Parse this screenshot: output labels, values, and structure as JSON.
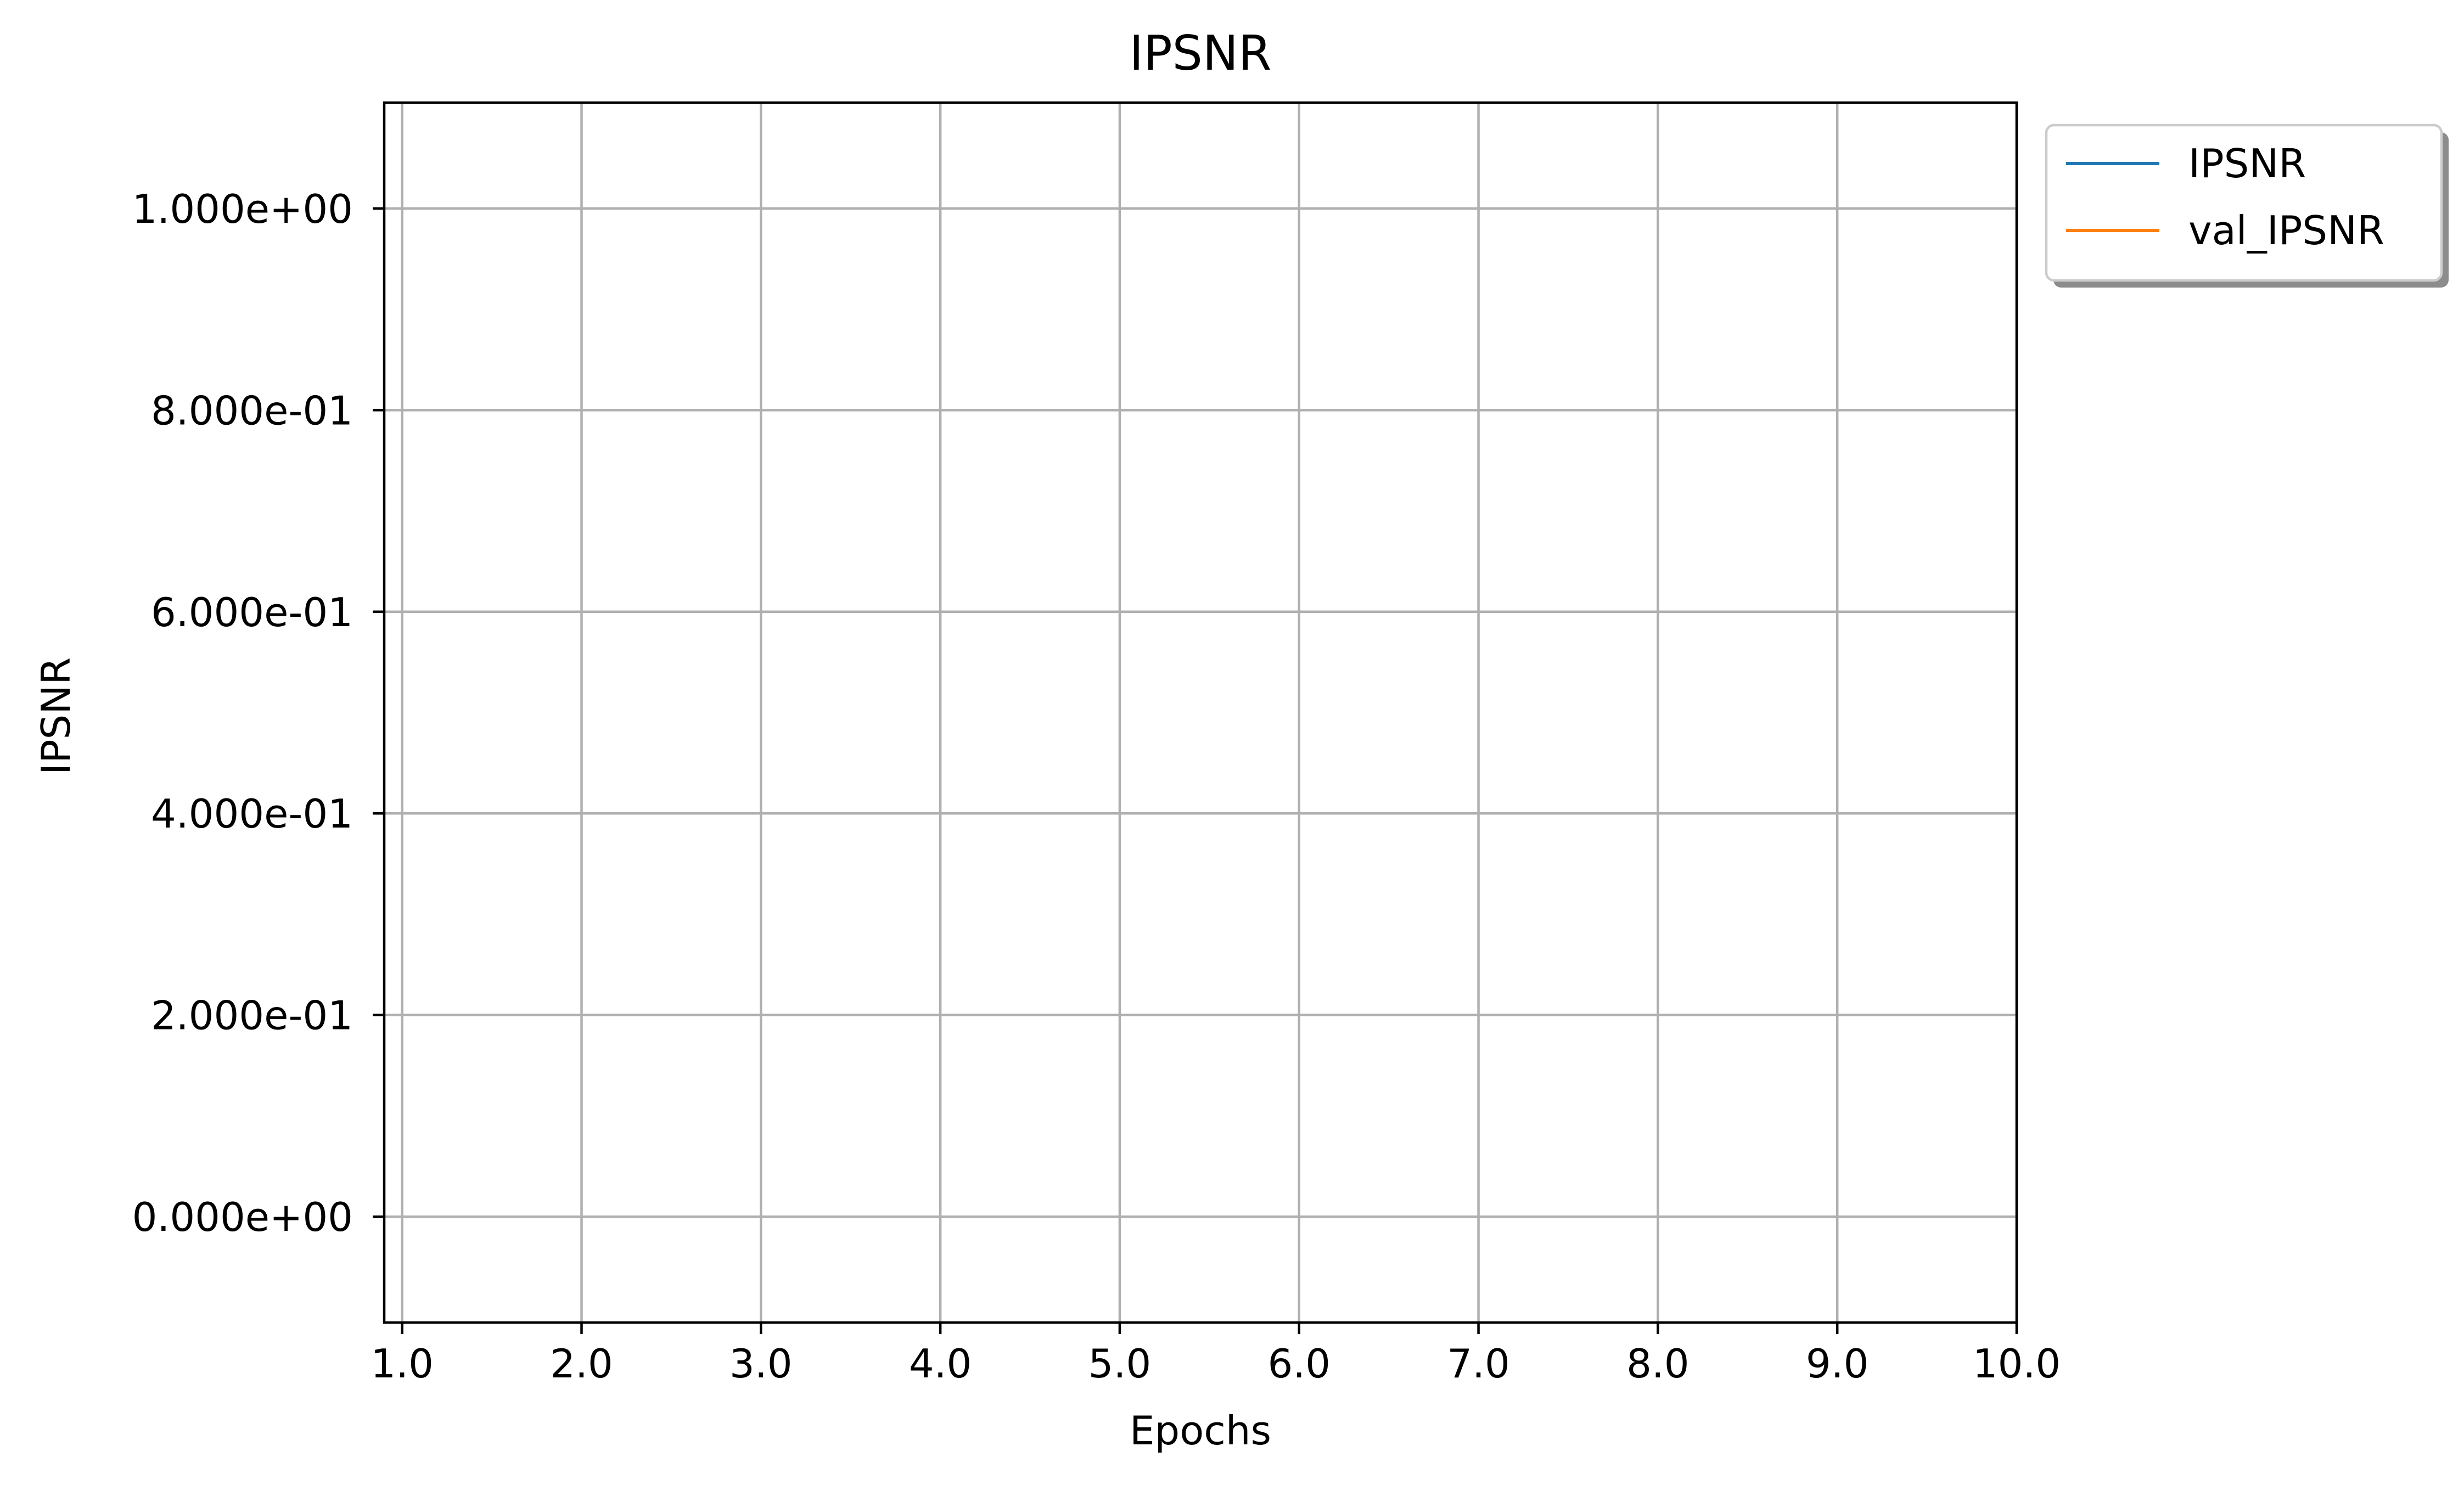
{
  "chart_data": {
    "type": "line",
    "title": "IPSNR",
    "xlabel": "Epochs",
    "ylabel": "IPSNR",
    "x_ticks": [
      "1.0",
      "2.0",
      "3.0",
      "4.0",
      "5.0",
      "6.0",
      "7.0",
      "8.0",
      "9.0",
      "10.0"
    ],
    "x_tick_values": [
      1,
      2,
      3,
      4,
      5,
      6,
      7,
      8,
      9,
      10
    ],
    "y_ticks": [
      "0.000e+00",
      "2.000e-01",
      "4.000e-01",
      "6.000e-01",
      "8.000e-01",
      "1.000e+00"
    ],
    "y_tick_values": [
      0,
      0.2,
      0.4,
      0.6,
      0.8,
      1.0
    ],
    "xlim": [
      0.9,
      10.0
    ],
    "ylim": [
      -0.105,
      1.105
    ],
    "grid": true,
    "legend_position": "outside top-right",
    "series": [
      {
        "name": "IPSNR",
        "color": "#1f77b4",
        "x": [],
        "y": []
      },
      {
        "name": "val_IPSNR",
        "color": "#ff7f0e",
        "x": [],
        "y": []
      }
    ]
  }
}
